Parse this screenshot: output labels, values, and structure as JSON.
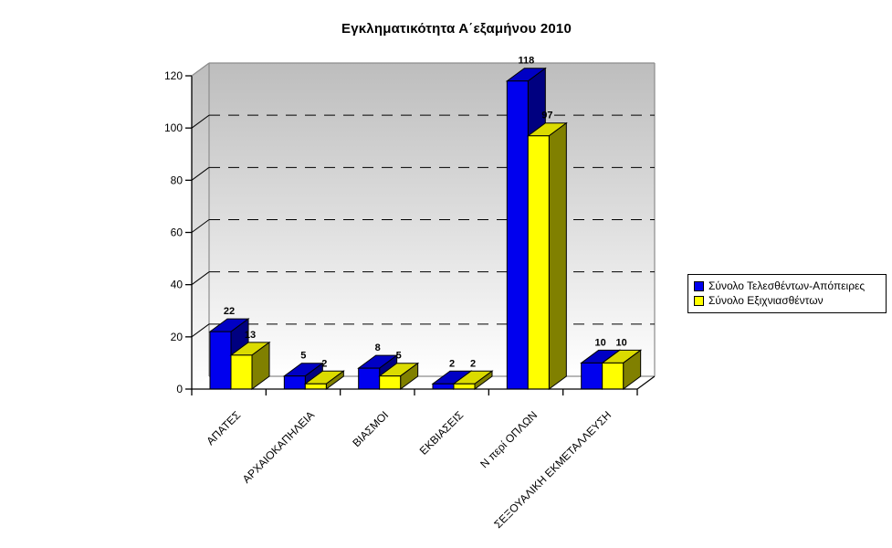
{
  "page": {
    "background": "#FFFFFF"
  },
  "chart_data": {
    "type": "bar",
    "subtype": "3d-clustered-column",
    "title": "Εγκληματικότητα Α΄εξαμήνου 2010",
    "categories": [
      "ΑΠΑΤΕΣ",
      "ΑΡΧΑΙΟΚΑΠΗΛΕΙΑ",
      "ΒΙΑΣΜΟΙ",
      "ΕΚΒΙΑΣΕΙΣ",
      "Ν περί ΟΠΛΩΝ",
      "ΣΕΞΟΥΑΛΙΚΗ ΕΚΜΕΤΑΛΛΕΥΣΗ"
    ],
    "series": [
      {
        "name": "Σύνολο Τελεσθέντων-Απόπειρες",
        "values": [
          22,
          5,
          8,
          2,
          118,
          10
        ],
        "color": "#0000EE",
        "color_top": "#0000C4",
        "color_side": "#000080"
      },
      {
        "name": "Σύνολο Εξιχνιασθέντων",
        "values": [
          13,
          2,
          5,
          2,
          97,
          10
        ],
        "color": "#FFFF00",
        "color_top": "#DBDB00",
        "color_side": "#808000"
      }
    ],
    "ylim": [
      0,
      120
    ],
    "yticks": [
      0,
      20,
      40,
      60,
      80,
      100,
      120
    ],
    "xlabel": "",
    "ylabel": "",
    "grid": "horizontal-dashed",
    "legend_position": "right",
    "data_labels": true,
    "colors": {
      "wall_top": "#BDBDBD",
      "wall_bottom": "#FFFFFF",
      "wall_edge": "#8C8C8C",
      "floor": "#FFFFFF",
      "axis": "#000000",
      "gridline": "#000000",
      "label_text": "#000000",
      "legend_border": "#000000",
      "legend_bg": "#FFFFFF"
    }
  }
}
